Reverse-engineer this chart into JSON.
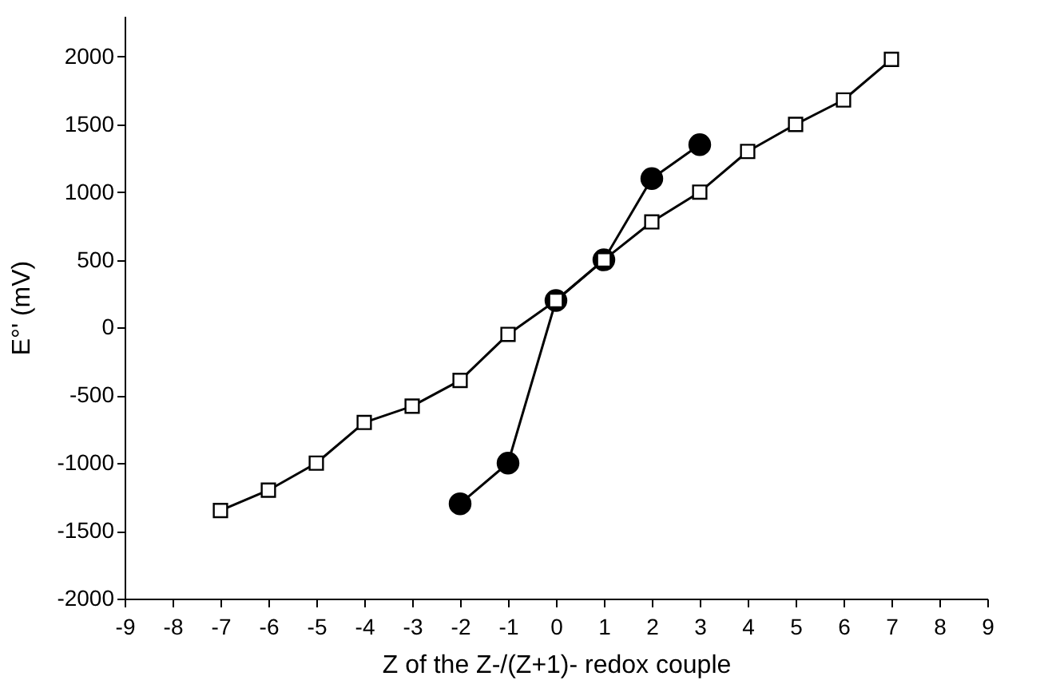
{
  "chart_data": {
    "type": "line",
    "xlabel": "Z of the Z-/(Z+1)- redox couple",
    "ylabel": "E°' (mV)",
    "xlim": [
      -9,
      9
    ],
    "xticks": [
      -9,
      -8,
      -7,
      -6,
      -5,
      -4,
      -3,
      -2,
      -1,
      0,
      1,
      2,
      3,
      4,
      5,
      6,
      7,
      8,
      9
    ],
    "ylim": [
      -2000,
      2300
    ],
    "yticks": [
      -2000,
      -1500,
      -1000,
      -500,
      0,
      500,
      1000,
      1500,
      2000
    ],
    "grid": false,
    "legend": false,
    "line_style": "solid",
    "series": [
      {
        "color": "#000000",
        "marker": "circle",
        "x": [
          -2,
          -1,
          0,
          1,
          2,
          3
        ],
        "values": [
          -1300,
          -1000,
          200,
          500,
          1100,
          1350
        ]
      },
      {
        "color": "#000000",
        "marker": "square",
        "x": [
          -7,
          -6,
          -5,
          -4,
          -3,
          -2,
          -1,
          0,
          1,
          2,
          3,
          4,
          5,
          6,
          7
        ],
        "values": [
          -1350,
          -1200,
          -1000,
          -700,
          -580,
          -390,
          -50,
          200,
          500,
          780,
          1000,
          1300,
          1500,
          1680,
          1980
        ]
      }
    ]
  }
}
